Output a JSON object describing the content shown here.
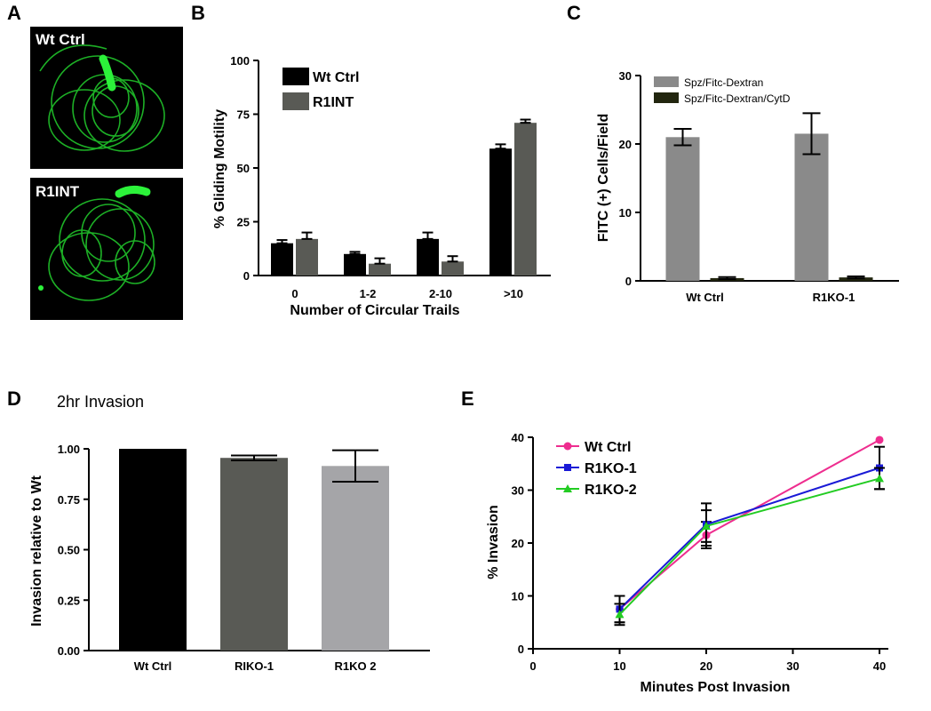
{
  "panel_labels": {
    "a": "A",
    "b": "B",
    "c": "C",
    "d": "D",
    "e": "E"
  },
  "micrographs": [
    {
      "label": "Wt Ctrl"
    },
    {
      "label": "R1INT"
    }
  ],
  "colors": {
    "black": "#000000",
    "dark_gray": "#595a55",
    "mid_gray": "#8a8a8a",
    "dark_olive": "#22260f",
    "light_gray": "#a5a5a8",
    "magenta": "#ee2d8f",
    "blue": "#1a1ad6",
    "green": "#22cc22",
    "fluor_green": "#21c42b"
  },
  "chart_data": [
    {
      "panel": "B",
      "type": "bar",
      "categories": [
        "0",
        "1-2",
        "2-10",
        ">10"
      ],
      "series": [
        {
          "name": "Wt Ctrl",
          "values": [
            15,
            10,
            17,
            59
          ],
          "errors": [
            1.5,
            1,
            3,
            2
          ],
          "color": "#000000"
        },
        {
          "name": "R1INT",
          "values": [
            17,
            5.5,
            6.5,
            71
          ],
          "errors": [
            3,
            2.5,
            2.5,
            1.5
          ],
          "color": "#595a55"
        }
      ],
      "xlabel": "Number of Circular Trails",
      "ylabel": "% Gliding Motility",
      "ylim": [
        0,
        100
      ],
      "yticks": [
        "0",
        "25",
        "50",
        "75",
        "100"
      ],
      "legend_position": "top-left"
    },
    {
      "panel": "C",
      "type": "bar",
      "categories": [
        "Wt Ctrl",
        "R1KO-1"
      ],
      "series": [
        {
          "name": "Spz/Fitc-Dextran",
          "values": [
            21,
            21.5
          ],
          "errors": [
            1.2,
            3
          ],
          "color": "#8a8a8a"
        },
        {
          "name": "Spz/Fitc-Dextran/CytD",
          "values": [
            0.4,
            0.5
          ],
          "errors": [
            0.15,
            0.15
          ],
          "color": "#22260f"
        }
      ],
      "xlabel": "",
      "ylabel": "FITC (+) Cells/Field",
      "ylim": [
        0,
        30
      ],
      "yticks": [
        "0",
        "10",
        "20",
        "30"
      ],
      "legend_position": "top-left"
    },
    {
      "panel": "D",
      "type": "bar",
      "title": "2hr  Invasion",
      "categories": [
        "Wt Ctrl",
        "RIKO-1",
        "R1KO 2"
      ],
      "values": [
        1.0,
        0.955,
        0.915
      ],
      "errors": [
        0,
        0.012,
        0.078
      ],
      "colors": [
        "#000000",
        "#595a55",
        "#a5a5a8"
      ],
      "xlabel": "",
      "ylabel": "Invasion relative to Wt",
      "ylim": [
        0,
        1.0
      ],
      "yticks": [
        "0.00",
        "0.25",
        "0.50",
        "0.75",
        "1.00"
      ]
    },
    {
      "panel": "E",
      "type": "line",
      "x": [
        10,
        20,
        40
      ],
      "series": [
        {
          "name": "Wt Ctrl",
          "values": [
            7.5,
            21.5,
            39.5
          ],
          "errors": [
            2.5,
            2.5,
            0
          ],
          "color": "#ee2d8f",
          "marker": "circle"
        },
        {
          "name": "R1KO-1",
          "values": [
            7.5,
            23.5,
            34.2
          ],
          "errors": [
            2.5,
            4,
            4
          ],
          "color": "#1a1ad6",
          "marker": "square"
        },
        {
          "name": "R1KO-2",
          "values": [
            6.5,
            23.2,
            32.2
          ],
          "errors": [
            2,
            3,
            2
          ],
          "color": "#22cc22",
          "marker": "triangle"
        }
      ],
      "xlabel": "Minutes Post Invasion",
      "ylabel": "% Invasion",
      "xlim": [
        0,
        40
      ],
      "ylim": [
        0,
        40
      ],
      "xticks": [
        "0",
        "10",
        "20",
        "30",
        "40"
      ],
      "yticks": [
        "0",
        "10",
        "20",
        "30",
        "40"
      ],
      "legend_position": "top-left"
    }
  ]
}
